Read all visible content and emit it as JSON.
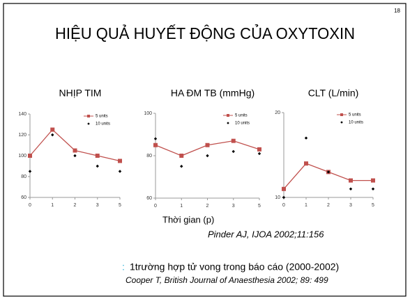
{
  "slide_number": "18",
  "title": "HIỆU QUẢ HUYẾT ĐỘNG CỦA OXYTOXIN",
  "x_label": "Thời gian (p)",
  "citation": "Pinder AJ, IJOA 2002;11:156",
  "note_bullet": ":",
  "note": "1trường hợp tử vong trong báo cáo (2000-2002)",
  "note_citation": "Cooper T, British Journal of Anaesthesia 2002; 89: 499",
  "chart_data": [
    {
      "type": "line",
      "title": "NHỊP TIM",
      "categories": [
        "0",
        "1",
        "2",
        "3",
        "5"
      ],
      "series": [
        {
          "name": "5 units",
          "color": "#c0504d",
          "line": true,
          "values": [
            100,
            125,
            105,
            100,
            95
          ]
        },
        {
          "name": "10 units",
          "color": "#000000",
          "line": false,
          "values": [
            85,
            120,
            100,
            90,
            85
          ]
        }
      ],
      "ylim": [
        60,
        140
      ],
      "yticks": [
        60,
        80,
        100,
        120,
        140
      ],
      "legend": "upper right"
    },
    {
      "type": "line",
      "title": "HA ĐM TB (mmHg)",
      "categories": [
        "0",
        "1",
        "2",
        "3",
        "5"
      ],
      "series": [
        {
          "name": "5 units",
          "color": "#c0504d",
          "line": true,
          "values": [
            85,
            80,
            85,
            87,
            83
          ]
        },
        {
          "name": "10 units",
          "color": "#000000",
          "line": false,
          "values": [
            88,
            75,
            80,
            82,
            81
          ]
        }
      ],
      "ylim": [
        60,
        100
      ],
      "yticks": [
        60,
        80,
        100
      ],
      "legend": "upper right"
    },
    {
      "type": "line",
      "title": "CLT (L/min)",
      "categories": [
        "0",
        "1",
        "2",
        "3",
        "5"
      ],
      "series": [
        {
          "name": "5 units",
          "color": "#c0504d",
          "line": true,
          "values": [
            11,
            14,
            13,
            12,
            12
          ]
        },
        {
          "name": "10 units",
          "color": "#000000",
          "line": false,
          "values": [
            10,
            17,
            13,
            11,
            11
          ]
        }
      ],
      "ylim": [
        10,
        20
      ],
      "yticks": [
        10,
        20
      ],
      "legend": "upper right"
    }
  ]
}
